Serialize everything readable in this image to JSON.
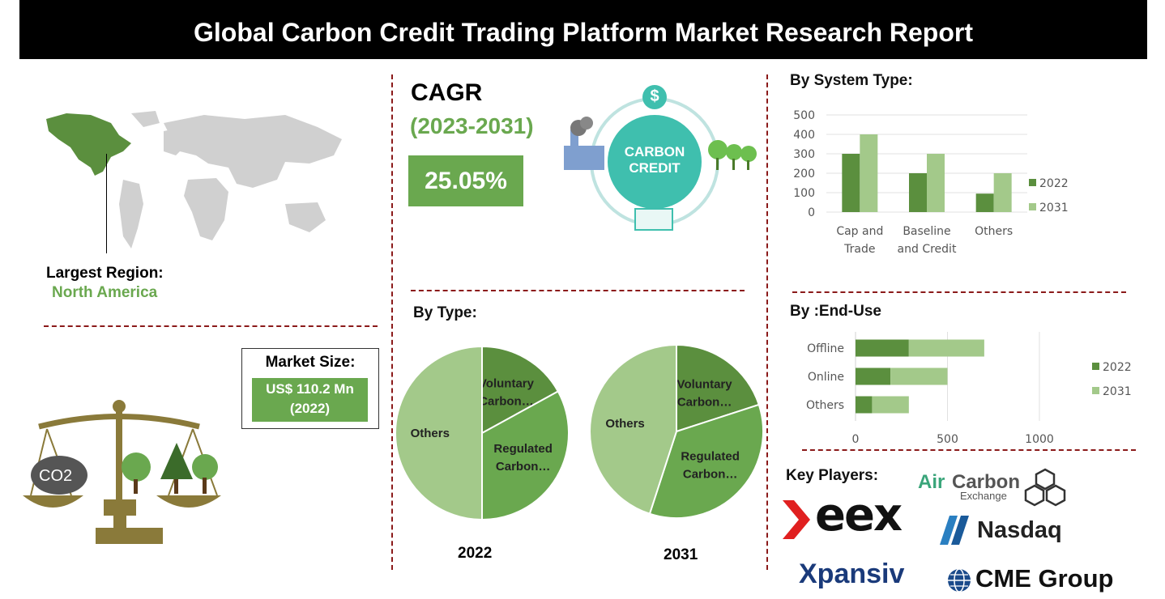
{
  "title": "Global Carbon Credit Trading Platform Market Research Report",
  "region": {
    "label": "Largest Region:",
    "value": "North America"
  },
  "cagr": {
    "label": "CAGR",
    "period": "(2023-2031)",
    "value": "25.05%"
  },
  "carbon_credit_graphic": {
    "line1": "CARBON",
    "line2": "CREDIT",
    "dollar": "$"
  },
  "market_size": {
    "label": "Market Size:",
    "value": "US$ 110.2 Mn",
    "year": "(2022)"
  },
  "co2_label": "CO2",
  "key_players": {
    "label": "Key Players:",
    "logos": [
      {
        "name": "eex",
        "text": "eex"
      },
      {
        "name": "aircarbon",
        "text_air": "Air",
        "text_carbon": "Carbon",
        "text_exchange": "Exchange"
      },
      {
        "name": "nasdaq",
        "text": "Nasdaq"
      },
      {
        "name": "xpansiv",
        "text": "Xpansiv"
      },
      {
        "name": "cme",
        "text": "CME Group"
      }
    ]
  },
  "colors": {
    "dark_green": "#5b8f3e",
    "light_green": "#a3c98a",
    "mid_green": "#6aa84f",
    "accent_red": "#8b1a1a"
  },
  "chart_data": [
    {
      "id": "system-type",
      "type": "bar",
      "title": "By System Type:",
      "categories": [
        "Cap and Trade",
        "Baseline and Credit",
        "Others"
      ],
      "category_lines": [
        [
          "Cap and",
          "Trade"
        ],
        [
          "Baseline",
          "and Credit"
        ],
        [
          "Others"
        ]
      ],
      "series": [
        {
          "name": "2022",
          "values": [
            300,
            200,
            95
          ]
        },
        {
          "name": "2031",
          "values": [
            400,
            300,
            200
          ]
        }
      ],
      "ylim": [
        0,
        500
      ],
      "yticks": [
        0,
        100,
        200,
        300,
        400,
        500
      ],
      "grid": true,
      "legend": "right"
    },
    {
      "id": "end-use",
      "type": "bar",
      "orientation": "horizontal",
      "stacked": true,
      "title": "By :End-Use",
      "categories": [
        "Offline",
        "Online",
        "Others"
      ],
      "series": [
        {
          "name": "2022",
          "values": [
            290,
            190,
            90
          ]
        },
        {
          "name": "2031",
          "values": [
            410,
            310,
            200
          ]
        }
      ],
      "xlim": [
        0,
        1000
      ],
      "xticks": [
        0,
        500,
        1000
      ],
      "grid": true,
      "legend": "right"
    },
    {
      "id": "type-2022",
      "type": "pie",
      "title": "By Type:",
      "caption": "2022",
      "labels": [
        "Voluntary Carbon…",
        "Regulated Carbon…",
        "Others"
      ],
      "label_lines": [
        [
          "Voluntary",
          "Carbon…"
        ],
        [
          "Regulated",
          "Carbon…"
        ],
        [
          "Others"
        ]
      ],
      "values": [
        17,
        33,
        50
      ]
    },
    {
      "id": "type-2031",
      "type": "pie",
      "caption": "2031",
      "labels": [
        "Voluntary Carbon…",
        "Regulated Carbon…",
        "Others"
      ],
      "label_lines": [
        [
          "Voluntary",
          "Carbon…"
        ],
        [
          "Regulated",
          "Carbon…"
        ],
        [
          "Others"
        ]
      ],
      "values": [
        20,
        35,
        45
      ]
    }
  ]
}
